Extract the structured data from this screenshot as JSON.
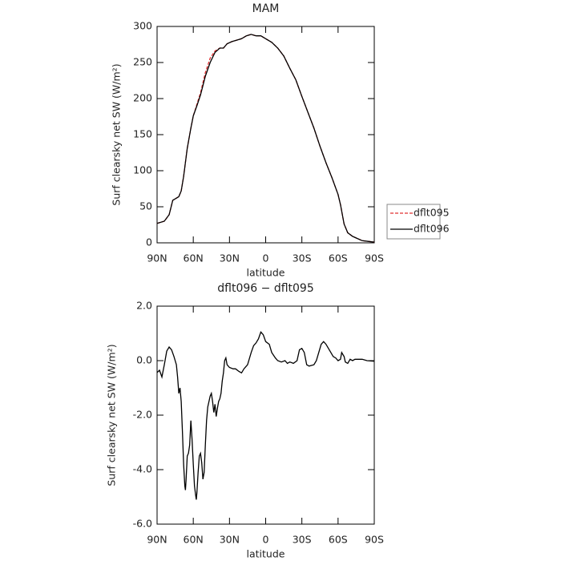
{
  "chart_data": [
    {
      "type": "line",
      "title": "MAM",
      "xlabel": "latitude",
      "ylabel": "Surf clearsky net SW (W/m²)",
      "x": [
        90,
        84,
        80,
        77,
        72,
        70,
        68,
        65,
        62,
        60,
        57,
        54,
        50,
        46,
        42,
        38,
        35,
        32,
        28,
        24,
        20,
        16,
        12,
        8,
        4,
        0,
        -5,
        -10,
        -15,
        -20,
        -25,
        -30,
        -35,
        -40,
        -45,
        -50,
        -55,
        -60,
        -62,
        -65,
        -68,
        -72,
        -76,
        -80,
        -85,
        -90
      ],
      "series": [
        {
          "name": "dflt095",
          "color": "#e03030",
          "linestyle": "dashed",
          "values": [
            27,
            30,
            39,
            59,
            64,
            72,
            92,
            131,
            159,
            176,
            192,
            208,
            236,
            256,
            266,
            270,
            270,
            276,
            279,
            281,
            283,
            287,
            289,
            287,
            287,
            283,
            278,
            270,
            259,
            242,
            226,
            203,
            181,
            159,
            134,
            111,
            90,
            67,
            53,
            26,
            14,
            9,
            6,
            3,
            2,
            1
          ]
        },
        {
          "name": "dflt096",
          "color": "#000000",
          "linestyle": "solid",
          "values": [
            27,
            30,
            39,
            59,
            64,
            72,
            92,
            131,
            159,
            176,
            190,
            205,
            231,
            250,
            264,
            270,
            270,
            276,
            279,
            281,
            283,
            287,
            289,
            287,
            287,
            283,
            278,
            270,
            259,
            242,
            226,
            203,
            181,
            159,
            134,
            111,
            90,
            67,
            53,
            26,
            14,
            9,
            6,
            3,
            2,
            1
          ]
        }
      ],
      "xlim": [
        90,
        -90
      ],
      "xticks": [
        {
          "value": 90,
          "label": "90N"
        },
        {
          "value": 60,
          "label": "60N"
        },
        {
          "value": 30,
          "label": "30N"
        },
        0,
        {
          "value": -30,
          "label": "30S"
        },
        {
          "value": -60,
          "label": "60S"
        },
        {
          "value": -90,
          "label": "90S"
        }
      ],
      "ylim": [
        0,
        300
      ],
      "yticks": [
        0,
        50,
        100,
        150,
        200,
        250,
        300
      ],
      "legend": "right"
    },
    {
      "type": "line",
      "title": "dflt096 − dflt095",
      "xlabel": "latitude",
      "ylabel": "Surf clearsky net SW (W/m²)",
      "x": [
        90,
        88,
        86,
        84,
        82,
        80,
        78,
        76,
        74,
        73,
        72,
        71,
        70,
        69,
        68,
        67,
        66.5,
        66,
        65,
        64,
        63,
        62,
        61,
        60,
        59,
        58,
        57.5,
        57,
        56,
        55,
        54,
        53,
        52,
        51,
        50,
        49,
        48,
        47,
        46,
        45,
        44,
        43,
        42,
        41,
        40,
        39,
        38,
        37,
        36,
        35,
        34,
        33,
        32,
        30,
        27,
        25,
        22,
        20,
        18,
        15,
        12,
        10,
        8,
        6,
        4,
        2,
        0,
        -3,
        -5,
        -8,
        -10,
        -13,
        -16,
        -18,
        -20,
        -23,
        -26,
        -28,
        -30,
        -32,
        -34,
        -36,
        -40,
        -42,
        -44,
        -46,
        -48,
        -50,
        -52,
        -54,
        -56,
        -58,
        -60,
        -62,
        -63,
        -65,
        -66,
        -68,
        -70,
        -72,
        -74,
        -76,
        -80,
        -84,
        -90
      ],
      "values": [
        -0.44,
        -0.35,
        -0.6,
        -0.15,
        0.35,
        0.5,
        0.4,
        0.15,
        -0.15,
        -0.6,
        -1.2,
        -1.0,
        -1.5,
        -2.6,
        -3.8,
        -4.6,
        -4.75,
        -4.4,
        -3.5,
        -3.4,
        -3.1,
        -2.2,
        -2.9,
        -3.8,
        -4.6,
        -4.95,
        -5.1,
        -4.85,
        -4.1,
        -3.5,
        -3.4,
        -3.75,
        -4.35,
        -4.1,
        -3.1,
        -2.2,
        -1.7,
        -1.5,
        -1.3,
        -1.2,
        -1.5,
        -1.9,
        -1.6,
        -2.05,
        -1.75,
        -1.5,
        -1.4,
        -1.2,
        -0.75,
        -0.45,
        0,
        0.1,
        -0.15,
        -0.25,
        -0.3,
        -0.3,
        -0.4,
        -0.45,
        -0.3,
        -0.15,
        0.3,
        0.55,
        0.65,
        0.8,
        1.05,
        0.95,
        0.7,
        0.6,
        0.3,
        0.1,
        0,
        -0.05,
        0,
        -0.1,
        -0.05,
        -0.1,
        0,
        0.4,
        0.45,
        0.3,
        -0.15,
        -0.2,
        -0.15,
        0,
        0.3,
        0.6,
        0.7,
        0.6,
        0.45,
        0.3,
        0.15,
        0.1,
        0,
        0.05,
        0.3,
        0.15,
        -0.05,
        -0.1,
        0.05,
        0,
        0.05,
        0.05,
        0.05,
        0,
        -0.02
      ],
      "color": "#000000",
      "xlim": [
        90,
        -90
      ],
      "xticks": [
        {
          "value": 90,
          "label": "90N"
        },
        {
          "value": 60,
          "label": "60N"
        },
        {
          "value": 30,
          "label": "30N"
        },
        0,
        {
          "value": -30,
          "label": "30S"
        },
        {
          "value": -60,
          "label": "60S"
        },
        {
          "value": -90,
          "label": "90S"
        }
      ],
      "ylim": [
        -6,
        2
      ],
      "yticks": [
        {
          "value": -6,
          "label": "-6.0"
        },
        {
          "value": -4,
          "label": "-4.0"
        },
        {
          "value": -2,
          "label": "-2.0"
        },
        {
          "value": 0,
          "label": "0.0"
        },
        {
          "value": 2,
          "label": "2.0"
        }
      ]
    }
  ]
}
